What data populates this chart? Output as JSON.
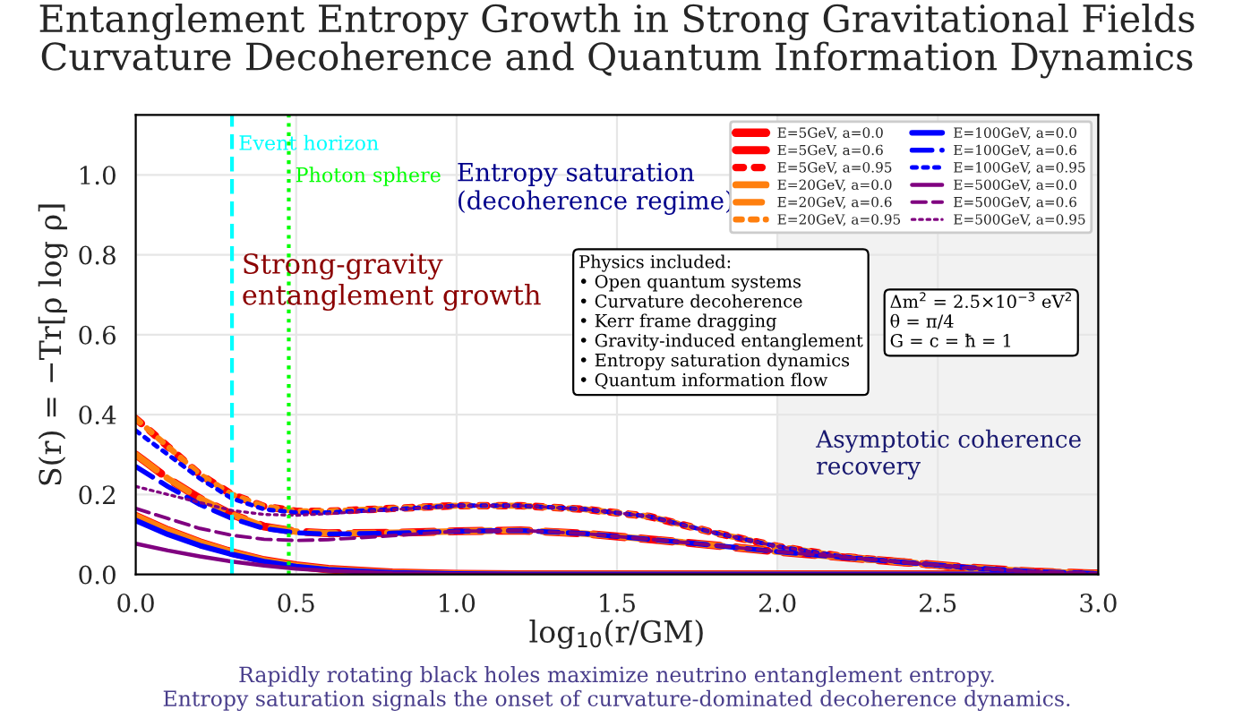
{
  "chart_data": {
    "type": "line",
    "title": "Entanglement Entropy Growth in Strong Gravitational Fields\nCurvature Decoherence and Quantum Information Dynamics",
    "xlabel": "log$_{10}$(r/GM)",
    "ylabel": "S(r) = −Tr[ρ log ρ]",
    "x": [
      0,
      0.1,
      0.2,
      0.3,
      0.4,
      0.5,
      0.6,
      0.8,
      1.0,
      1.2,
      1.4,
      1.6,
      1.8,
      2.0,
      2.2,
      2.4,
      2.6,
      2.8,
      3.0
    ],
    "series": [
      {
        "name": "E=5GeV, a=0.0",
        "color": "#ff0000",
        "line_style": "solid",
        "values": [
          0.146,
          0.11,
          0.08,
          0.055,
          0.035,
          0.022,
          0.013,
          0.004,
          0.001,
          0,
          0,
          0,
          0,
          0,
          0,
          0,
          0,
          0,
          0
        ]
      },
      {
        "name": "E=5GeV, a=0.6",
        "color": "#ff0000",
        "line_style": "dashed",
        "values": [
          0.3,
          0.24,
          0.19,
          0.15,
          0.12,
          0.107,
          0.103,
          0.104,
          0.108,
          0.11,
          0.102,
          0.088,
          0.073,
          0.057,
          0.043,
          0.03,
          0.017,
          0.007,
          0.002
        ]
      },
      {
        "name": "E=5GeV, a=0.95",
        "color": "#ff0000",
        "line_style": "dotted",
        "values": [
          0.39,
          0.32,
          0.25,
          0.2,
          0.17,
          0.158,
          0.158,
          0.165,
          0.172,
          0.172,
          0.163,
          0.145,
          0.105,
          0.07,
          0.045,
          0.03,
          0.015,
          0.006,
          0.002
        ]
      },
      {
        "name": "E=20GeV, a=0.0",
        "color": "#ff7f0e",
        "line_style": "solid",
        "values": [
          0.146,
          0.11,
          0.08,
          0.055,
          0.035,
          0.022,
          0.013,
          0.004,
          0.001,
          0,
          0,
          0,
          0,
          0,
          0,
          0,
          0,
          0,
          0
        ]
      },
      {
        "name": "E=20GeV, a=0.6",
        "color": "#ff7f0e",
        "line_style": "dashed",
        "values": [
          0.3,
          0.24,
          0.19,
          0.15,
          0.12,
          0.107,
          0.103,
          0.104,
          0.108,
          0.11,
          0.102,
          0.088,
          0.073,
          0.057,
          0.043,
          0.03,
          0.017,
          0.007,
          0.002
        ]
      },
      {
        "name": "E=20GeV, a=0.95",
        "color": "#ff7f0e",
        "line_style": "dotted",
        "values": [
          0.39,
          0.32,
          0.25,
          0.2,
          0.17,
          0.158,
          0.158,
          0.165,
          0.172,
          0.172,
          0.163,
          0.145,
          0.105,
          0.07,
          0.045,
          0.03,
          0.015,
          0.006,
          0.002
        ]
      },
      {
        "name": "E=100GeV, a=0.0",
        "color": "#0000ff",
        "line_style": "solid",
        "values": [
          0.135,
          0.1,
          0.072,
          0.05,
          0.032,
          0.02,
          0.012,
          0.004,
          0.001,
          0,
          0,
          0,
          0,
          0,
          0,
          0,
          0,
          0,
          0
        ]
      },
      {
        "name": "E=100GeV, a=0.6",
        "color": "#0000ff",
        "line_style": "dashed",
        "values": [
          0.27,
          0.22,
          0.175,
          0.14,
          0.115,
          0.104,
          0.101,
          0.103,
          0.108,
          0.11,
          0.102,
          0.088,
          0.073,
          0.057,
          0.043,
          0.03,
          0.017,
          0.007,
          0.002
        ]
      },
      {
        "name": "E=100GeV, a=0.95",
        "color": "#0000ff",
        "line_style": "dotted",
        "values": [
          0.36,
          0.3,
          0.24,
          0.19,
          0.163,
          0.155,
          0.155,
          0.163,
          0.172,
          0.172,
          0.163,
          0.145,
          0.105,
          0.07,
          0.045,
          0.03,
          0.015,
          0.006,
          0.002
        ]
      },
      {
        "name": "E=500GeV, a=0.0",
        "color": "#800080",
        "line_style": "solid",
        "values": [
          0.077,
          0.06,
          0.045,
          0.032,
          0.022,
          0.014,
          0.009,
          0.003,
          0.001,
          0,
          0,
          0,
          0,
          0,
          0,
          0,
          0,
          0,
          0
        ]
      },
      {
        "name": "E=500GeV, a=0.6",
        "color": "#800080",
        "line_style": "dashed",
        "values": [
          0.165,
          0.14,
          0.115,
          0.098,
          0.088,
          0.085,
          0.087,
          0.097,
          0.108,
          0.11,
          0.102,
          0.088,
          0.073,
          0.057,
          0.043,
          0.03,
          0.017,
          0.007,
          0.002
        ]
      },
      {
        "name": "E=500GeV, a=0.95",
        "color": "#800080",
        "line_style": "dotted",
        "values": [
          0.22,
          0.2,
          0.18,
          0.16,
          0.15,
          0.148,
          0.152,
          0.162,
          0.172,
          0.172,
          0.163,
          0.145,
          0.105,
          0.07,
          0.045,
          0.03,
          0.015,
          0.006,
          0.002
        ]
      }
    ],
    "xlim": [
      0,
      3.0
    ],
    "xticks": [
      {
        "value": 0,
        "label": "0.0"
      },
      0.5,
      {
        "value": 1,
        "label": "1.0"
      },
      1.5,
      {
        "value": 2,
        "label": "2.0"
      },
      2.5,
      {
        "value": 3,
        "label": "3.0"
      }
    ],
    "ylim": [
      0,
      1.15
    ],
    "yticks": [
      {
        "value": 0,
        "label": "0.0"
      },
      0.2,
      0.4,
      0.6,
      0.8,
      {
        "value": 1,
        "label": "1.0"
      }
    ],
    "ref_lines": [
      {
        "axis": "x",
        "value": 0.3,
        "label": "Event horizon",
        "color": "#00ffff",
        "line_style": "dashed"
      },
      {
        "axis": "x",
        "value": 0.477,
        "label": "Photon sphere",
        "color": "#00ff00",
        "line_style": "dotted"
      }
    ],
    "bands": [
      {
        "axis": "x",
        "from": 2.0,
        "to": 3.0,
        "label": "Asymptotic coherence\nrecovery",
        "color": "#f2f2f2"
      }
    ],
    "annotations": [
      "Strong-gravity\nentanglement growth",
      "Entropy saturation\n(decoherence regime)",
      "Physics included:\n• Open quantum systems\n• Curvature decoherence\n• Kerr frame dragging\n• Gravity-induced entanglement\n• Entropy saturation dynamics\n• Quantum information flow",
      "Δm$^{2}$ = 2.5×10$^{−3}$ eV$^{2}$\nθ = π/4\nG = c = ħ = 1",
      "Rapidly rotating black holes maximize neutrino entanglement entropy.\nEntropy saturation signals the onset of curvature-dominated decoherence dynamics."
    ],
    "grid": true,
    "legend": "top right",
    "marker": "none"
  }
}
